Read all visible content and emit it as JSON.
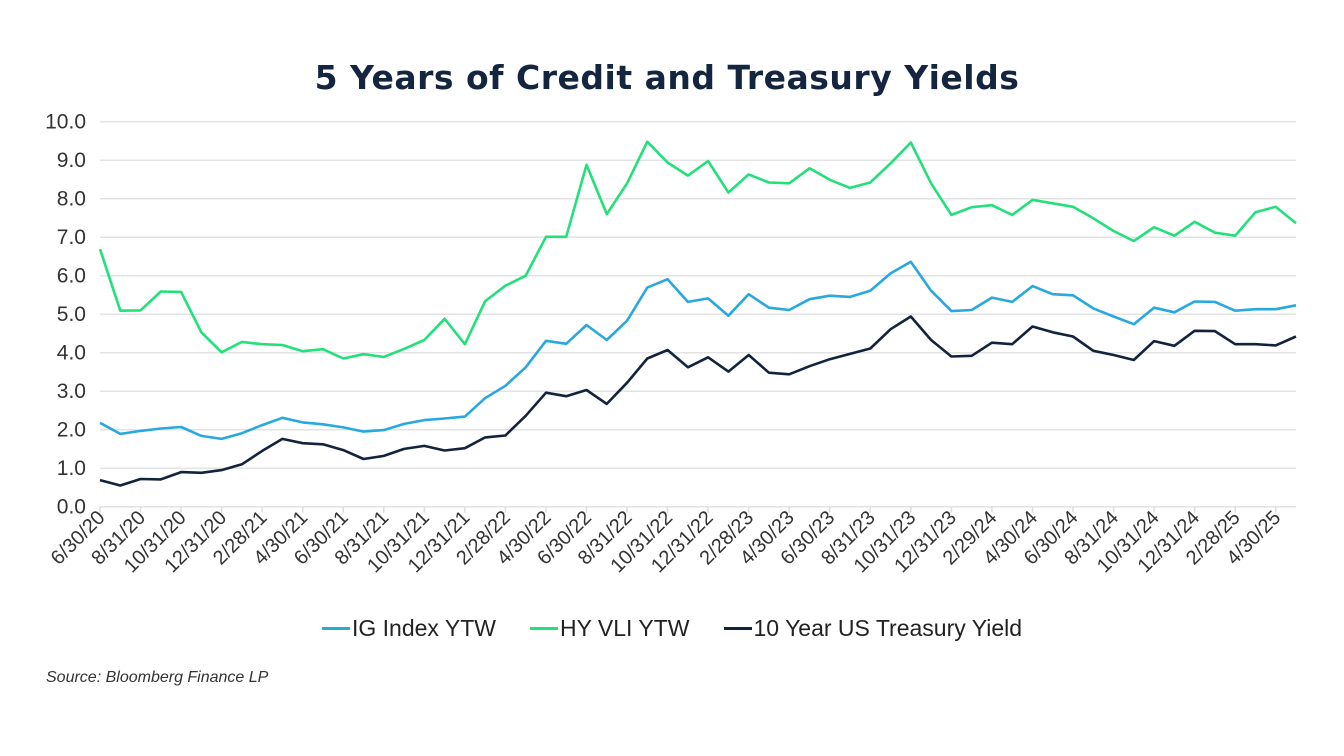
{
  "chart_data": {
    "type": "line",
    "title": "5 Years of Credit and Treasury Yields",
    "xlabel": "",
    "ylabel": "",
    "ylim": [
      0,
      10
    ],
    "yticks": [
      "0.0",
      "1.0",
      "2.0",
      "3.0",
      "4.0",
      "5.0",
      "6.0",
      "7.0",
      "8.0",
      "9.0",
      "10.0"
    ],
    "grid": true,
    "legend": "bottom",
    "x": [
      "6/30/20",
      "7/31/20",
      "8/31/20",
      "9/30/20",
      "10/31/20",
      "11/30/20",
      "12/31/20",
      "1/31/21",
      "2/28/21",
      "3/31/21",
      "4/30/21",
      "5/31/21",
      "6/30/21",
      "7/31/21",
      "8/31/21",
      "9/30/21",
      "10/31/21",
      "11/30/21",
      "12/31/21",
      "1/31/22",
      "2/28/22",
      "3/31/22",
      "4/30/22",
      "5/31/22",
      "6/30/22",
      "7/31/22",
      "8/31/22",
      "9/30/22",
      "10/31/22",
      "11/30/22",
      "12/31/22",
      "1/31/23",
      "2/28/23",
      "3/31/23",
      "4/30/23",
      "5/31/23",
      "6/30/23",
      "7/31/23",
      "8/31/23",
      "9/30/23",
      "10/31/23",
      "11/30/23",
      "12/31/23",
      "1/31/24",
      "2/29/24",
      "3/31/24",
      "4/30/24",
      "5/31/24",
      "6/30/24",
      "7/31/24",
      "8/31/24",
      "9/30/24",
      "10/31/24",
      "11/30/24",
      "12/31/24",
      "1/31/25",
      "2/28/25",
      "3/31/25",
      "4/30/25",
      "5/31/25"
    ],
    "xtick_labels": [
      "6/30/20",
      "8/31/20",
      "10/31/20",
      "12/31/20",
      "2/28/21",
      "4/30/21",
      "6/30/21",
      "8/31/21",
      "10/31/21",
      "12/31/21",
      "2/28/22",
      "4/30/22",
      "6/30/22",
      "8/31/22",
      "10/31/22",
      "12/31/22",
      "2/28/23",
      "4/30/23",
      "6/30/23",
      "8/31/23",
      "10/31/23",
      "12/31/23",
      "2/29/24",
      "4/30/24",
      "6/30/24",
      "8/31/24",
      "10/31/24",
      "12/31/24",
      "2/28/25",
      "4/30/25"
    ],
    "series": [
      {
        "name": "IG Index YTW",
        "color": "#29a8e0",
        "values": [
          2.18,
          1.89,
          1.97,
          2.03,
          2.07,
          1.84,
          1.76,
          1.91,
          2.12,
          2.31,
          2.19,
          2.14,
          2.06,
          1.95,
          1.99,
          2.15,
          2.25,
          2.29,
          2.34,
          2.82,
          3.14,
          3.62,
          4.31,
          4.23,
          4.72,
          4.33,
          4.83,
          5.69,
          5.91,
          5.32,
          5.41,
          4.96,
          5.52,
          5.17,
          5.11,
          5.39,
          5.48,
          5.45,
          5.61,
          6.06,
          6.36,
          5.61,
          5.08,
          5.11,
          5.43,
          5.32,
          5.73,
          5.52,
          5.49,
          5.15,
          4.94,
          4.74,
          5.17,
          5.05,
          5.33,
          5.32,
          5.09,
          5.13,
          5.13,
          5.23
        ]
      },
      {
        "name": "HY VLI YTW",
        "color": "#22e07a",
        "values": [
          6.69,
          5.09,
          5.1,
          5.59,
          5.58,
          4.53,
          4.01,
          4.28,
          4.22,
          4.2,
          4.04,
          4.09,
          3.85,
          3.96,
          3.89,
          4.1,
          4.33,
          4.88,
          4.22,
          5.34,
          5.74,
          6.0,
          7.01,
          7.01,
          8.88,
          7.6,
          8.4,
          9.48,
          8.94,
          8.6,
          8.98,
          8.16,
          8.63,
          8.42,
          8.4,
          8.79,
          8.49,
          8.28,
          8.42,
          8.92,
          9.46,
          8.4,
          7.58,
          7.78,
          7.83,
          7.58,
          7.97,
          7.88,
          7.79,
          7.49,
          7.16,
          6.9,
          7.26,
          7.04,
          7.4,
          7.12,
          7.04,
          7.65,
          7.79,
          7.36
        ]
      },
      {
        "name": "10 Year US Treasury Yield",
        "color": "#13233d",
        "values": [
          0.69,
          0.55,
          0.72,
          0.71,
          0.9,
          0.88,
          0.95,
          1.1,
          1.45,
          1.76,
          1.65,
          1.62,
          1.47,
          1.24,
          1.32,
          1.5,
          1.58,
          1.46,
          1.52,
          1.8,
          1.85,
          2.36,
          2.96,
          2.87,
          3.03,
          2.67,
          3.22,
          3.85,
          4.07,
          3.62,
          3.88,
          3.51,
          3.94,
          3.48,
          3.44,
          3.65,
          3.83,
          3.97,
          4.11,
          4.61,
          4.94,
          4.33,
          3.9,
          3.92,
          4.26,
          4.22,
          4.68,
          4.53,
          4.42,
          4.05,
          3.94,
          3.81,
          4.3,
          4.18,
          4.57,
          4.56,
          4.22,
          4.22,
          4.19,
          4.42
        ]
      }
    ]
  },
  "source": "Source: Bloomberg Finance LP"
}
